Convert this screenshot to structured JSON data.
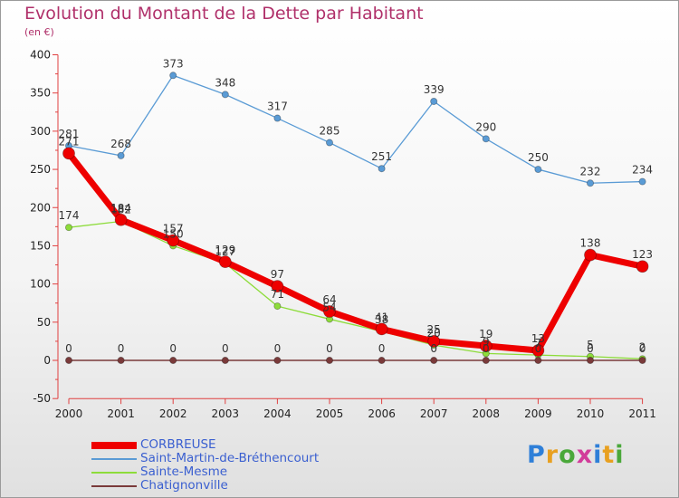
{
  "header": {
    "title": "Evolution du Montant de la Dette par Habitant",
    "unit": "(en €)"
  },
  "brand": {
    "text": "Proxiti",
    "colors": [
      "#2e7fd8",
      "#e8a020",
      "#4aa83a",
      "#d23c9a",
      "#2e7fd8",
      "#e8a020",
      "#4aa83a"
    ]
  },
  "chart_data": {
    "type": "line",
    "title": "Evolution du Montant de la Dette par Habitant",
    "subtitle": "(en €)",
    "xlabel": "",
    "ylabel": "",
    "x": [
      "2000",
      "2001",
      "2002",
      "2003",
      "2004",
      "2005",
      "2006",
      "2007",
      "2008",
      "2009",
      "2010",
      "2011"
    ],
    "ylim": [
      -50,
      400
    ],
    "yticks": [
      -50,
      0,
      50,
      100,
      150,
      200,
      250,
      300,
      350,
      400
    ],
    "grid": false,
    "legend_position": "bottom-left",
    "series": [
      {
        "name": "CORBREUSE",
        "color": "#ee0000",
        "values": [
          271,
          184,
          157,
          129,
          97,
          64,
          41,
          25,
          19,
          13,
          138,
          123
        ]
      },
      {
        "name": "Saint-Martin-de-Bréthencourt",
        "color": "#5a9bd5",
        "values": [
          281,
          268,
          373,
          348,
          317,
          285,
          251,
          339,
          290,
          250,
          232,
          234
        ]
      },
      {
        "name": "Sainte-Mesme",
        "color": "#8ddc3a",
        "values": [
          174,
          182,
          150,
          127,
          71,
          54,
          38,
          20,
          9,
          7,
          5,
          2
        ]
      },
      {
        "name": "Chatignonville",
        "color": "#7a3a3a",
        "values": [
          0,
          0,
          0,
          0,
          0,
          0,
          0,
          0,
          0,
          0,
          0,
          0
        ]
      }
    ]
  }
}
